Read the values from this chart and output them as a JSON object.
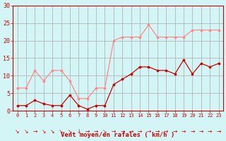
{
  "x": [
    0,
    1,
    2,
    3,
    4,
    5,
    6,
    7,
    8,
    9,
    10,
    11,
    12,
    13,
    14,
    15,
    16,
    17,
    18,
    19,
    20,
    21,
    22,
    23
  ],
  "wind_mean": [
    6.5,
    6.5,
    11.5,
    8.5,
    11.5,
    11.5,
    8.5,
    3.5,
    3.5,
    6.5,
    6.5,
    20.0,
    21.0,
    21.0,
    21.0,
    24.5,
    21.0,
    21.0,
    21.0,
    21.0,
    23.0,
    23.0,
    23.0,
    23.0
  ],
  "wind_gust": [
    1.5,
    1.5,
    3.0,
    2.0,
    1.5,
    1.5,
    4.5,
    1.5,
    0.5,
    1.5,
    1.5,
    7.5,
    9.0,
    10.5,
    12.5,
    12.5,
    11.5,
    11.5,
    10.5,
    14.5,
    10.5,
    13.5,
    12.5,
    13.5
  ],
  "wind_mean_color": "#ff8888",
  "wind_gust_color": "#cc0000",
  "bg_color": "#d4f5f5",
  "grid_color": "#aaaaaa",
  "tick_color": "#cc0000",
  "xlabel": "Vent moyen/en rafales ( km/h )",
  "ylim": [
    0,
    30
  ],
  "yticks": [
    0,
    5,
    10,
    15,
    20,
    25,
    30
  ],
  "arrow_chars": [
    "↘",
    "↘",
    "→",
    "↘",
    "↘",
    "↘",
    "↘",
    "↓",
    "→",
    "→",
    "↘",
    "→",
    "→",
    "→",
    "→",
    "→",
    "→",
    "→",
    "→",
    "→",
    "→",
    "→",
    "→",
    "→"
  ]
}
